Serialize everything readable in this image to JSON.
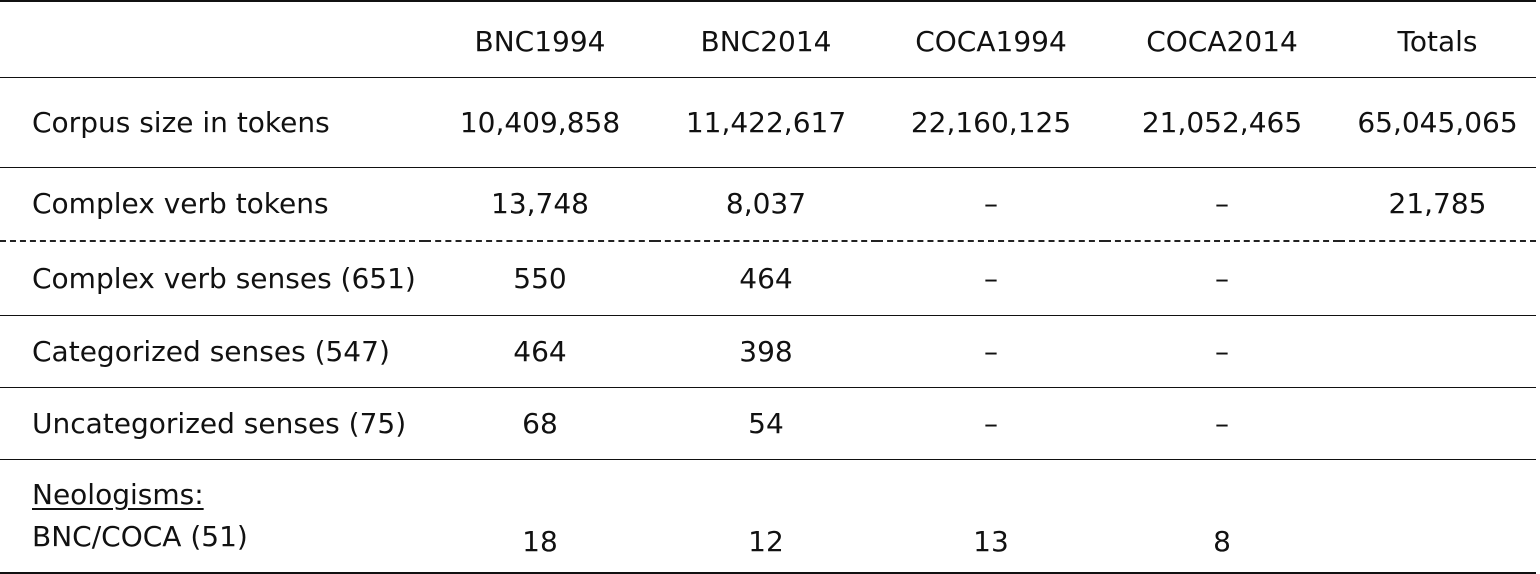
{
  "table": {
    "headers": [
      "",
      "BNC1994",
      "BNC2014",
      "COCA1994",
      "COCA2014",
      "Totals"
    ],
    "rows": {
      "corpus_size": {
        "label": "Corpus size in tokens",
        "values": [
          "10,409,858",
          "11,422,617",
          "22,160,125",
          "21,052,465",
          "65,045,065"
        ]
      },
      "complex_verb_tokens": {
        "label": "Complex verb tokens",
        "values": [
          "13,748",
          "8,037",
          "–",
          "–",
          "21,785"
        ]
      },
      "complex_verb_senses": {
        "label": "Complex verb senses (651)",
        "values": [
          "550",
          "464",
          "–",
          "–",
          ""
        ]
      },
      "categorized_senses": {
        "label": "Categorized senses (547)",
        "values": [
          "464",
          "398",
          "–",
          "–",
          ""
        ]
      },
      "uncategorized_senses": {
        "label": "Uncategorized senses (75)",
        "values": [
          "68",
          "54",
          "–",
          "–",
          ""
        ]
      },
      "neologisms": {
        "heading": "Neologisms:",
        "label": "BNC/COCA (51)",
        "values": [
          "18",
          "12",
          "13",
          "8",
          ""
        ]
      }
    }
  }
}
